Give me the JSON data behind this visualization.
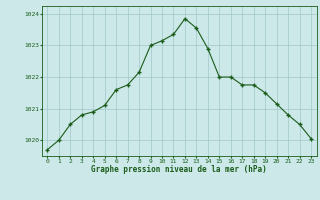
{
  "x": [
    0,
    1,
    2,
    3,
    4,
    5,
    6,
    7,
    8,
    9,
    10,
    11,
    12,
    13,
    14,
    15,
    16,
    17,
    18,
    19,
    20,
    21,
    22,
    23
  ],
  "y": [
    1019.7,
    1020.0,
    1020.5,
    1020.8,
    1020.9,
    1021.1,
    1021.6,
    1021.75,
    1022.15,
    1023.0,
    1023.15,
    1023.35,
    1023.85,
    1023.55,
    1022.9,
    1022.0,
    1022.0,
    1021.75,
    1021.75,
    1021.5,
    1021.15,
    1020.8,
    1020.5,
    1020.05
  ],
  "line_color": "#1a5c1a",
  "marker": "+",
  "background_color": "#cce8e8",
  "grid_color": "#a0c8c8",
  "xlabel": "Graphe pression niveau de la mer (hPa)",
  "xlabel_color": "#1a5c1a",
  "tick_color": "#1a5c1a",
  "ylim": [
    1019.5,
    1024.25
  ],
  "yticks": [
    1020,
    1021,
    1022,
    1023,
    1024
  ],
  "xticks": [
    0,
    1,
    2,
    3,
    4,
    5,
    6,
    7,
    8,
    9,
    10,
    11,
    12,
    13,
    14,
    15,
    16,
    17,
    18,
    19,
    20,
    21,
    22,
    23
  ],
  "figsize": [
    3.2,
    2.0
  ],
  "dpi": 100
}
